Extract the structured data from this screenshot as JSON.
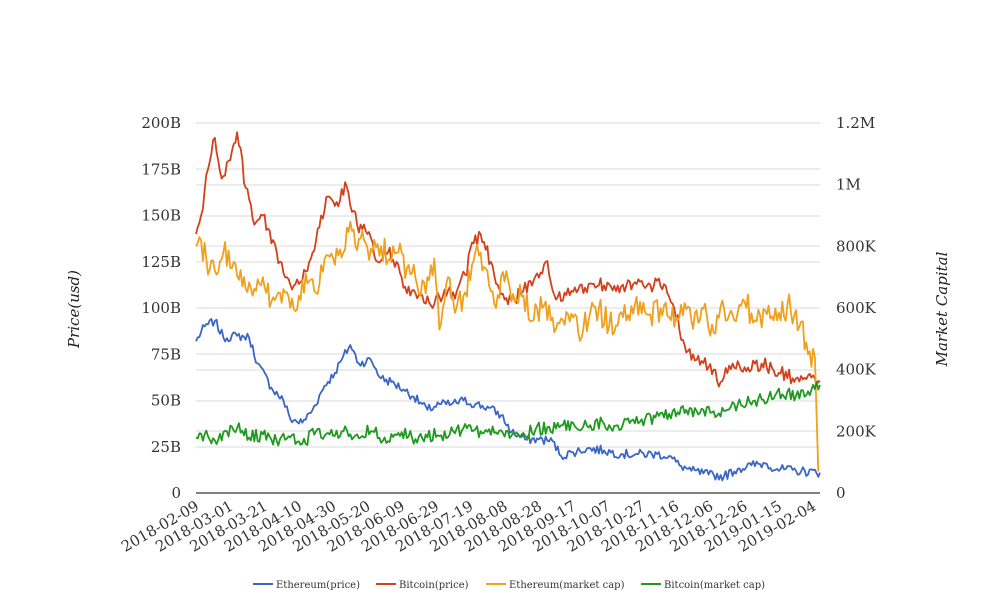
{
  "chart_data": {
    "type": "line",
    "ylabel_left": "Price(usd)",
    "ylabel_right": "Market Capital",
    "left_ticks": [
      "0",
      "25B",
      "50B",
      "75B",
      "100B",
      "125B",
      "150B",
      "175B",
      "200B"
    ],
    "left_ylim": [
      0,
      200
    ],
    "right_ticks": [
      "0",
      "200K",
      "400K",
      "600K",
      "800K",
      "1M",
      "1.2M"
    ],
    "right_ylim": [
      0,
      1200
    ],
    "x_ticks": [
      "2018-02-09",
      "2018-03-01",
      "2018-03-21",
      "2018-04-10",
      "2018-04-30",
      "2018-05-20",
      "2018-06-09",
      "2018-06-29",
      "2018-07-19",
      "2018-08-08",
      "2018-08-28",
      "2018-09-17",
      "2018-10-07",
      "2018-10-27",
      "2018-11-16",
      "2018-12-06",
      "2018-12-26",
      "2019-01-15",
      "2019-02-04"
    ],
    "x_range": [
      "2018-02-09",
      "2019-02-08"
    ],
    "grid": true,
    "legend_position": "bottom",
    "series": [
      {
        "name": "Ethereum(price)",
        "color": "#3a66c4",
        "axis": "left",
        "points": [
          [
            "2018-02-09",
            82
          ],
          [
            "2018-02-14",
            90
          ],
          [
            "2018-02-20",
            93
          ],
          [
            "2018-02-25",
            84
          ],
          [
            "2018-03-05",
            85
          ],
          [
            "2018-03-12",
            84
          ],
          [
            "2018-03-17",
            70
          ],
          [
            "2018-03-25",
            57
          ],
          [
            "2018-04-01",
            50
          ],
          [
            "2018-04-05",
            40
          ],
          [
            "2018-04-12",
            38
          ],
          [
            "2018-04-18",
            45
          ],
          [
            "2018-04-25",
            58
          ],
          [
            "2018-05-01",
            65
          ],
          [
            "2018-05-05",
            72
          ],
          [
            "2018-05-10",
            80
          ],
          [
            "2018-05-15",
            70
          ],
          [
            "2018-05-22",
            72
          ],
          [
            "2018-05-28",
            62
          ],
          [
            "2018-06-03",
            60
          ],
          [
            "2018-06-10",
            56
          ],
          [
            "2018-06-16",
            52
          ],
          [
            "2018-06-24",
            45
          ],
          [
            "2018-07-01",
            48
          ],
          [
            "2018-07-08",
            48
          ],
          [
            "2018-07-15",
            50
          ],
          [
            "2018-07-22",
            48
          ],
          [
            "2018-07-30",
            46
          ],
          [
            "2018-08-06",
            42
          ],
          [
            "2018-08-12",
            33
          ],
          [
            "2018-08-20",
            29
          ],
          [
            "2018-08-28",
            29
          ],
          [
            "2018-09-05",
            28
          ],
          [
            "2018-09-10",
            20
          ],
          [
            "2018-09-17",
            22
          ],
          [
            "2018-09-25",
            24
          ],
          [
            "2018-10-05",
            23
          ],
          [
            "2018-10-15",
            21
          ],
          [
            "2018-10-25",
            21
          ],
          [
            "2018-11-05",
            21
          ],
          [
            "2018-11-12",
            20
          ],
          [
            "2018-11-18",
            15
          ],
          [
            "2018-11-25",
            12
          ],
          [
            "2018-12-05",
            10
          ],
          [
            "2018-12-14",
            9
          ],
          [
            "2018-12-22",
            13
          ],
          [
            "2018-12-30",
            15
          ],
          [
            "2019-01-07",
            16
          ],
          [
            "2019-01-14",
            13
          ],
          [
            "2019-01-25",
            12
          ],
          [
            "2019-02-08",
            11
          ]
        ]
      },
      {
        "name": "Bitcoin(price)",
        "color": "#d2401c",
        "axis": "left",
        "points": [
          [
            "2018-02-09",
            140
          ],
          [
            "2018-02-12",
            150
          ],
          [
            "2018-02-16",
            175
          ],
          [
            "2018-02-20",
            192
          ],
          [
            "2018-02-24",
            170
          ],
          [
            "2018-03-01",
            180
          ],
          [
            "2018-03-05",
            195
          ],
          [
            "2018-03-10",
            165
          ],
          [
            "2018-03-15",
            145
          ],
          [
            "2018-03-20",
            150
          ],
          [
            "2018-03-25",
            135
          ],
          [
            "2018-03-30",
            125
          ],
          [
            "2018-04-06",
            110
          ],
          [
            "2018-04-12",
            115
          ],
          [
            "2018-04-18",
            130
          ],
          [
            "2018-04-23",
            150
          ],
          [
            "2018-04-28",
            160
          ],
          [
            "2018-05-03",
            155
          ],
          [
            "2018-05-07",
            168
          ],
          [
            "2018-05-14",
            145
          ],
          [
            "2018-05-20",
            140
          ],
          [
            "2018-05-26",
            125
          ],
          [
            "2018-06-01",
            130
          ],
          [
            "2018-06-06",
            125
          ],
          [
            "2018-06-12",
            108
          ],
          [
            "2018-06-19",
            107
          ],
          [
            "2018-06-27",
            100
          ],
          [
            "2018-07-04",
            110
          ],
          [
            "2018-07-10",
            105
          ],
          [
            "2018-07-16",
            118
          ],
          [
            "2018-07-21",
            135
          ],
          [
            "2018-07-25",
            140
          ],
          [
            "2018-07-31",
            125
          ],
          [
            "2018-08-05",
            110
          ],
          [
            "2018-08-12",
            104
          ],
          [
            "2018-08-18",
            108
          ],
          [
            "2018-08-25",
            115
          ],
          [
            "2018-09-01",
            125
          ],
          [
            "2018-09-06",
            107
          ],
          [
            "2018-09-13",
            107
          ],
          [
            "2018-09-20",
            110
          ],
          [
            "2018-09-28",
            113
          ],
          [
            "2018-10-08",
            113
          ],
          [
            "2018-10-18",
            112
          ],
          [
            "2018-10-30",
            112
          ],
          [
            "2018-11-10",
            112
          ],
          [
            "2018-11-15",
            100
          ],
          [
            "2018-11-21",
            80
          ],
          [
            "2018-11-28",
            72
          ],
          [
            "2018-12-05",
            68
          ],
          [
            "2018-12-12",
            60
          ],
          [
            "2018-12-19",
            70
          ],
          [
            "2018-12-26",
            68
          ],
          [
            "2019-01-05",
            70
          ],
          [
            "2019-01-15",
            65
          ],
          [
            "2019-01-25",
            62
          ],
          [
            "2019-02-08",
            60
          ]
        ]
      },
      {
        "name": "Ethereum(market cap)",
        "color": "#f0a01c",
        "axis": "right",
        "points": [
          [
            "2018-02-09",
            800
          ],
          [
            "2018-02-11",
            830
          ],
          [
            "2018-02-15",
            760
          ],
          [
            "2018-02-20",
            720
          ],
          [
            "2018-02-25",
            780
          ],
          [
            "2018-03-03",
            750
          ],
          [
            "2018-03-09",
            700
          ],
          [
            "2018-03-14",
            640
          ],
          [
            "2018-03-20",
            700
          ],
          [
            "2018-03-25",
            620
          ],
          [
            "2018-03-30",
            650
          ],
          [
            "2018-04-05",
            600
          ],
          [
            "2018-04-10",
            640
          ],
          [
            "2018-04-15",
            680
          ],
          [
            "2018-04-20",
            650
          ],
          [
            "2018-04-25",
            760
          ],
          [
            "2018-05-01",
            740
          ],
          [
            "2018-05-06",
            780
          ],
          [
            "2018-05-10",
            880
          ],
          [
            "2018-05-13",
            800
          ],
          [
            "2018-05-18",
            820
          ],
          [
            "2018-05-23",
            780
          ],
          [
            "2018-05-28",
            800
          ],
          [
            "2018-06-02",
            760
          ],
          [
            "2018-06-07",
            780
          ],
          [
            "2018-06-12",
            730
          ],
          [
            "2018-06-16",
            740
          ],
          [
            "2018-06-20",
            640
          ],
          [
            "2018-06-24",
            700
          ],
          [
            "2018-06-28",
            760
          ],
          [
            "2018-07-01",
            530
          ],
          [
            "2018-07-06",
            700
          ],
          [
            "2018-07-11",
            600
          ],
          [
            "2018-07-15",
            640
          ],
          [
            "2018-07-20",
            740
          ],
          [
            "2018-07-24",
            770
          ],
          [
            "2018-07-29",
            720
          ],
          [
            "2018-08-03",
            600
          ],
          [
            "2018-08-09",
            720
          ],
          [
            "2018-08-14",
            620
          ],
          [
            "2018-08-19",
            640
          ],
          [
            "2018-08-25",
            560
          ],
          [
            "2018-08-30",
            600
          ],
          [
            "2018-09-04",
            560
          ],
          [
            "2018-09-09",
            550
          ],
          [
            "2018-09-14",
            580
          ],
          [
            "2018-09-20",
            520
          ],
          [
            "2018-09-26",
            560
          ],
          [
            "2018-10-02",
            600
          ],
          [
            "2018-10-08",
            540
          ],
          [
            "2018-10-14",
            580
          ],
          [
            "2018-10-20",
            560
          ],
          [
            "2018-10-26",
            620
          ],
          [
            "2018-11-01",
            580
          ],
          [
            "2018-11-07",
            600
          ],
          [
            "2018-11-13",
            560
          ],
          [
            "2018-11-19",
            610
          ],
          [
            "2018-11-25",
            560
          ],
          [
            "2018-12-01",
            600
          ],
          [
            "2018-12-08",
            520
          ],
          [
            "2018-12-14",
            600
          ],
          [
            "2018-12-20",
            560
          ],
          [
            "2018-12-26",
            620
          ],
          [
            "2019-01-01",
            560
          ],
          [
            "2019-01-08",
            580
          ],
          [
            "2019-01-14",
            560
          ],
          [
            "2019-01-20",
            610
          ],
          [
            "2019-01-27",
            540
          ],
          [
            "2019-02-02",
            460
          ],
          [
            "2019-02-05",
            440
          ],
          [
            "2019-02-07",
            70
          ]
        ]
      },
      {
        "name": "Bitcoin(market cap)",
        "color": "#1f9a1f",
        "axis": "right",
        "points": [
          [
            "2018-02-09",
            180
          ],
          [
            "2018-02-14",
            190
          ],
          [
            "2018-02-20",
            170
          ],
          [
            "2018-02-27",
            200
          ],
          [
            "2018-03-05",
            210
          ],
          [
            "2018-03-12",
            180
          ],
          [
            "2018-03-20",
            190
          ],
          [
            "2018-03-28",
            170
          ],
          [
            "2018-04-05",
            180
          ],
          [
            "2018-04-12",
            160
          ],
          [
            "2018-04-20",
            200
          ],
          [
            "2018-04-28",
            190
          ],
          [
            "2018-05-06",
            200
          ],
          [
            "2018-05-14",
            190
          ],
          [
            "2018-05-22",
            200
          ],
          [
            "2018-05-30",
            180
          ],
          [
            "2018-06-07",
            195
          ],
          [
            "2018-06-15",
            180
          ],
          [
            "2018-06-23",
            190
          ],
          [
            "2018-07-01",
            185
          ],
          [
            "2018-07-09",
            200
          ],
          [
            "2018-07-17",
            210
          ],
          [
            "2018-07-25",
            200
          ],
          [
            "2018-08-02",
            195
          ],
          [
            "2018-08-10",
            200
          ],
          [
            "2018-08-18",
            190
          ],
          [
            "2018-08-26",
            205
          ],
          [
            "2018-09-03",
            215
          ],
          [
            "2018-09-11",
            220
          ],
          [
            "2018-09-19",
            210
          ],
          [
            "2018-09-27",
            220
          ],
          [
            "2018-10-05",
            225
          ],
          [
            "2018-10-13",
            220
          ],
          [
            "2018-10-21",
            235
          ],
          [
            "2018-10-29",
            240
          ],
          [
            "2018-11-06",
            250
          ],
          [
            "2018-11-14",
            265
          ],
          [
            "2018-11-22",
            270
          ],
          [
            "2018-11-30",
            260
          ],
          [
            "2018-12-08",
            265
          ],
          [
            "2018-12-16",
            270
          ],
          [
            "2018-12-24",
            285
          ],
          [
            "2019-01-01",
            300
          ],
          [
            "2019-01-09",
            310
          ],
          [
            "2019-01-17",
            320
          ],
          [
            "2019-01-25",
            315
          ],
          [
            "2019-02-01",
            330
          ],
          [
            "2019-02-08",
            350
          ]
        ]
      }
    ]
  }
}
